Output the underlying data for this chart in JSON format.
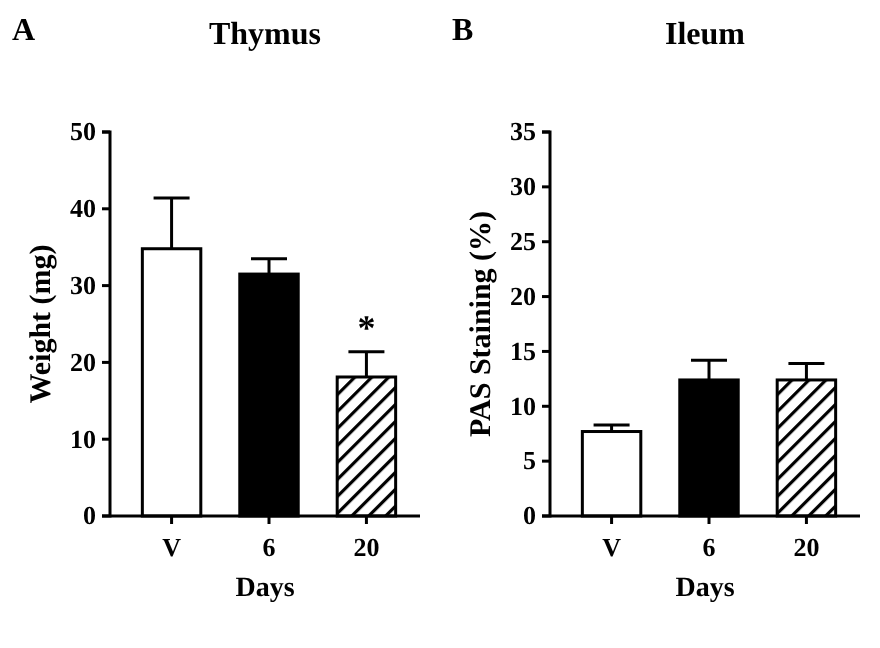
{
  "chart_data": [
    {
      "type": "bar",
      "title": "Thymus",
      "xlabel": "Days",
      "ylabel": "Weight (mg)",
      "categories": [
        "V",
        "6",
        "20"
      ],
      "values": [
        34.8,
        31.5,
        18.1
      ],
      "colors": [
        "#ffffff",
        "#000000",
        "#000000"
      ],
      "errors": [
        [
          34.8,
          41.4
        ],
        [
          31.5,
          33.5
        ],
        [
          18.1,
          21.4
        ]
      ],
      "ylim": [
        0,
        50
      ],
      "yticks": [
        0,
        10,
        20,
        30,
        40,
        50
      ],
      "annotations": [
        "A",
        {
          "text": "*",
          "x": "20",
          "y": 21.4
        }
      ]
    },
    {
      "type": "bar",
      "title": "Ileum",
      "xlabel": "Days",
      "ylabel": "PAS Staining (%)",
      "categories": [
        "V",
        "6",
        "20"
      ],
      "values": [
        7.7,
        12.4,
        12.4
      ],
      "colors": [
        "#ffffff",
        "#000000",
        "#000000"
      ],
      "errors": [
        [
          7.7,
          8.3
        ],
        [
          12.4,
          14.2
        ],
        [
          12.4,
          13.9
        ]
      ],
      "ylim": [
        0,
        35
      ],
      "yticks": [
        0,
        5,
        10,
        15,
        20,
        25,
        30,
        35
      ],
      "annotations": [
        "B"
      ]
    }
  ]
}
